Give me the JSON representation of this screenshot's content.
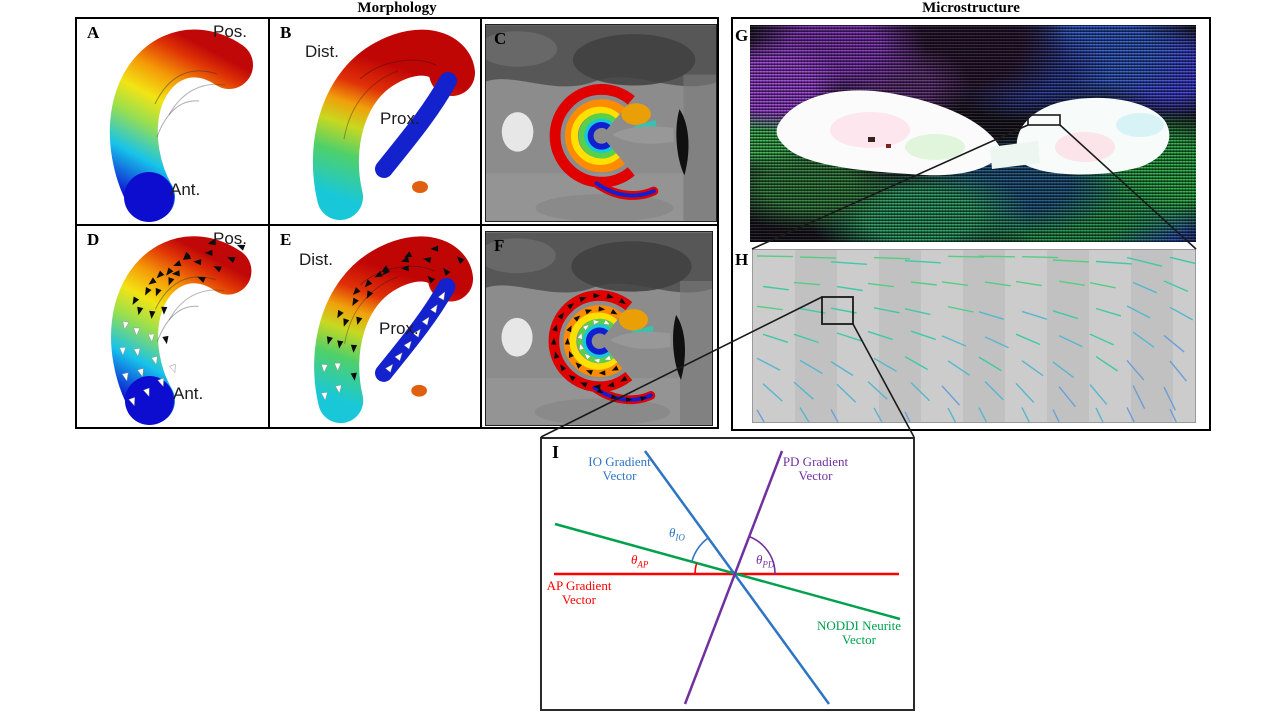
{
  "titles": {
    "morphology": "Morphology",
    "microstructure": "Microstructure"
  },
  "panel_letters": {
    "a": "A",
    "b": "B",
    "c": "C",
    "d": "D",
    "e": "E",
    "f": "F",
    "g": "G",
    "h": "H",
    "i": "I"
  },
  "anatomy": {
    "pos": "Pos.",
    "ant": "Ant.",
    "dist": "Dist.",
    "prox": "Prox."
  },
  "vector_diagram": {
    "io": {
      "line1": "IO Gradient",
      "line2": "Vector"
    },
    "pd": {
      "line1": "PD Gradient",
      "line2": "Vector"
    },
    "ap": {
      "line1": "AP Gradient",
      "line2": "Vector"
    },
    "noddi": {
      "line1": "NODDI Neurite",
      "line2": "Vector"
    },
    "theta": "θ",
    "io_sub": "IO",
    "ap_sub": "AP",
    "pd_sub": "PD"
  },
  "colors": {
    "io_blue": "#2e74c4",
    "pd_purple": "#7030a0",
    "ap_red": "#ff0000",
    "noddi_green": "#00a14d",
    "arrow_black": "#0d0d0d",
    "arrow_white": "#ffffff",
    "connector": "#1a1a1a"
  },
  "microstructure": {
    "h_palette": [
      "#55cd84",
      "#3fc9a6",
      "#57b6cf",
      "#6b9fd8"
    ]
  }
}
